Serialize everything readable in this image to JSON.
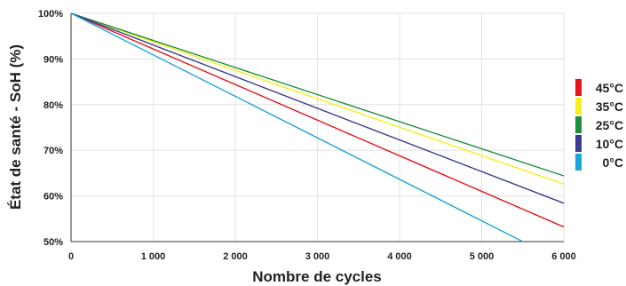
{
  "chart_data": {
    "type": "line",
    "title": "",
    "xlabel": "Nombre de cycles",
    "ylabel": "État de santé - SoH (%)",
    "xlim": [
      0,
      6000
    ],
    "ylim": [
      50,
      100
    ],
    "x_ticks": [
      0,
      1000,
      2000,
      3000,
      4000,
      5000,
      6000
    ],
    "x_tick_labels": [
      "0",
      "1 000",
      "2 000",
      "3 000",
      "4 000",
      "5 000",
      "6 000"
    ],
    "y_ticks": [
      50,
      60,
      70,
      80,
      90,
      100
    ],
    "y_tick_labels": [
      "50%",
      "60%",
      "70%",
      "80%",
      "90%",
      "100%"
    ],
    "grid": true,
    "legend_position": "right",
    "series": [
      {
        "name": "45°C",
        "color": "#e3141b",
        "x": [
          0,
          6000
        ],
        "y": [
          100,
          53.2
        ]
      },
      {
        "name": "35°C",
        "color": "#f4ef1c",
        "x": [
          0,
          6000
        ],
        "y": [
          100,
          62.6
        ]
      },
      {
        "name": "25°C",
        "color": "#1a8f3c",
        "x": [
          0,
          6000
        ],
        "y": [
          100,
          64.4
        ]
      },
      {
        "name": "10°C",
        "color": "#3a3d8f",
        "x": [
          0,
          6000
        ],
        "y": [
          100,
          58.4
        ]
      },
      {
        "name": "0°C",
        "color": "#1ea3d9",
        "x": [
          0,
          5500
        ],
        "y": [
          100,
          50.0
        ]
      }
    ]
  }
}
